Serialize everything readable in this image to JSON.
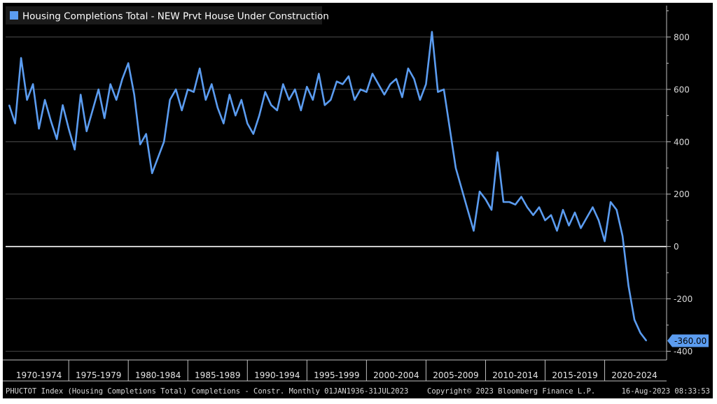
{
  "chart_data": {
    "type": "line",
    "title": "",
    "xlabel": "",
    "ylabel": "",
    "ylim": [
      -420,
      920
    ],
    "grid": true,
    "legend_position": "top-left",
    "y_ticks": [
      800,
      600,
      400,
      200,
      0,
      -200,
      -400
    ],
    "x_period_labels": [
      "1970-1974",
      "1975-1979",
      "1980-1984",
      "1985-1989",
      "1990-1994",
      "1995-1999",
      "2000-2004",
      "2005-2009",
      "2010-2014",
      "2015-2019",
      "2020-2024"
    ],
    "last_value_label": "-360.00",
    "colors": {
      "line": "#5b9cf0",
      "background": "#000000",
      "grid": "#5a5a5a",
      "zero_line": "#ffffff",
      "callout": "#5b9cf0"
    },
    "series": [
      {
        "name": "Housing Completions Total - NEW Prvt House Under Construction",
        "x": [
          1970.0,
          1970.5,
          1971.0,
          1971.5,
          1972.0,
          1972.5,
          1973.0,
          1973.5,
          1974.0,
          1974.5,
          1975.0,
          1975.5,
          1976.0,
          1976.5,
          1977.0,
          1977.5,
          1978.0,
          1978.5,
          1979.0,
          1979.5,
          1980.0,
          1980.5,
          1981.0,
          1981.5,
          1982.0,
          1982.5,
          1983.0,
          1983.5,
          1984.0,
          1984.5,
          1985.0,
          1985.5,
          1986.0,
          1986.5,
          1987.0,
          1987.5,
          1988.0,
          1988.5,
          1989.0,
          1989.5,
          1990.0,
          1990.5,
          1991.0,
          1991.5,
          1992.0,
          1992.5,
          1993.0,
          1993.5,
          1994.0,
          1994.5,
          1995.0,
          1995.5,
          1996.0,
          1996.5,
          1997.0,
          1997.5,
          1998.0,
          1998.5,
          1999.0,
          1999.5,
          2000.0,
          2000.5,
          2001.0,
          2001.5,
          2002.0,
          2002.5,
          2003.0,
          2003.5,
          2004.0,
          2004.5,
          2005.0,
          2005.5,
          2006.0,
          2006.5,
          2007.0,
          2007.5,
          2008.0,
          2008.5,
          2009.0,
          2009.5,
          2010.0,
          2010.5,
          2011.0,
          2011.5,
          2012.0,
          2012.5,
          2013.0,
          2013.5,
          2014.0,
          2014.5,
          2015.0,
          2015.5,
          2016.0,
          2016.5,
          2017.0,
          2017.5,
          2018.0,
          2018.5,
          2019.0,
          2019.5,
          2020.0,
          2020.5,
          2021.0,
          2021.5,
          2022.0,
          2022.5,
          2023.0,
          2023.5
        ],
        "values": [
          540,
          470,
          720,
          560,
          620,
          450,
          560,
          480,
          410,
          540,
          450,
          370,
          580,
          440,
          520,
          600,
          490,
          620,
          560,
          640,
          700,
          580,
          390,
          430,
          280,
          340,
          400,
          560,
          600,
          520,
          600,
          590,
          680,
          560,
          620,
          530,
          470,
          580,
          500,
          560,
          470,
          430,
          500,
          590,
          540,
          520,
          620,
          560,
          600,
          520,
          610,
          560,
          660,
          540,
          560,
          630,
          620,
          650,
          560,
          600,
          590,
          660,
          620,
          580,
          620,
          640,
          570,
          680,
          640,
          560,
          620,
          820,
          590,
          600,
          450,
          300,
          220,
          140,
          60,
          210,
          180,
          140,
          360,
          170,
          170,
          160,
          190,
          150,
          120,
          150,
          100,
          120,
          60,
          140,
          80,
          130,
          70,
          110,
          150,
          100,
          20,
          170,
          140,
          40,
          -150,
          -280,
          -330,
          -360
        ]
      }
    ]
  },
  "legend": {
    "label": "Housing Completions Total - NEW Prvt House Under Construction"
  },
  "footer": {
    "left": "PHUCTOT Index (Housing Completions Total) Completions - Constr. Monthly 01JAN1936-31JUL2023",
    "center": "Copyright© 2023 Bloomberg Finance L.P.",
    "right": "16-Aug-2023 08:33:53"
  }
}
